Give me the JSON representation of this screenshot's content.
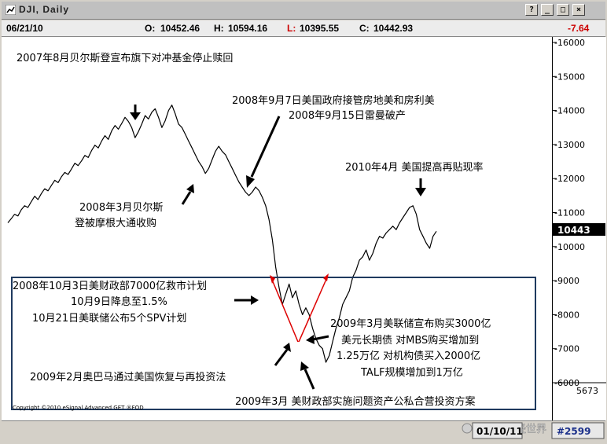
{
  "window": {
    "title": "DJI, Daily"
  },
  "infobar": {
    "date": "06/21/10",
    "open_label": "O:",
    "open": "10452.46",
    "high_label": "H:",
    "high": "10594.16",
    "low_label": "L:",
    "low": "10395.55",
    "close_label": "C:",
    "close": "10442.93",
    "change": "-7.64"
  },
  "colors": {
    "price_line": "#000000",
    "arrow": "#000000",
    "v_arrows": "#dd0000",
    "box": "#1f3a5f",
    "last_price_box": "#000000",
    "low_text": "#cc0000"
  },
  "last_price_label": "10443",
  "volume_label": "5673",
  "copyright": "Copyright ©2010 eSignal Advanced GET ®FOD",
  "footer": {
    "date": "01/10/11",
    "chart_no": "#2599"
  },
  "watermark": "付鹏的财经世界",
  "annotations": {
    "a1": "2007年8月贝尔斯登宣布旗下对冲基金停止赎回",
    "a2_line1": "2008年9月7日美国政府接管房地美和房利美",
    "a2_line2": "2008年9月15日雷曼破产",
    "a3_line1": "2008年3月贝尔斯",
    "a3_line2": "登被摩根大通收购",
    "a4": "2010年4月  美国提高再贴现率",
    "a5_line1": "2008年10月3日美财政部7000亿救市计划",
    "a5_line2": "10月9日降息至1.5%",
    "a5_line3": "10月21日美联储公布5个SPV计划",
    "a6_line1": "2009年3月美联储宣布购买3000亿",
    "a6_line2": "美元长期债  对MBS购买增加到",
    "a6_line3": "1.25万亿  对机构债买入2000亿",
    "a6_line4": "TALF规模增加到1万亿",
    "a7": "2009年2月奥巴马通过美国恢复与再投资法",
    "a8": "2009年3月  美财政部实施问题资产公私合营投资方案"
  },
  "chart_data": {
    "type": "line",
    "title": "DJI, Daily",
    "ylim": [
      5700,
      16000
    ],
    "y_ticks": [
      6000,
      7000,
      8000,
      9000,
      10000,
      11000,
      12000,
      13000,
      14000,
      15000,
      16000
    ],
    "y_tick_labels": [
      "-6000",
      "-7000",
      "-8000",
      "-9000",
      "-10000",
      "-11000",
      "-12000",
      "-13000",
      "-14000",
      "-15000",
      "-16000"
    ],
    "grid": false,
    "x_labels": [],
    "series": [
      {
        "values": [
          10700,
          10820,
          10950,
          10900,
          11080,
          11200,
          11150,
          11320,
          11480,
          11380,
          11560,
          11700,
          11640,
          11800,
          11950,
          11880,
          12050,
          12180,
          12120,
          12280,
          12450,
          12380,
          12520,
          12680,
          12620,
          12820,
          12980,
          12900,
          13100,
          13260,
          13150,
          13400,
          13560,
          13450,
          13620,
          13800,
          13680,
          13500,
          13200,
          13380,
          13600,
          13850,
          13750,
          13950,
          14050,
          13800,
          13500,
          13700,
          14000,
          14160,
          13900,
          13600,
          13500,
          13300,
          13100,
          12900,
          12700,
          12500,
          12350,
          12150,
          12300,
          12550,
          12800,
          12950,
          12800,
          12700,
          12500,
          12300,
          12100,
          11900,
          11750,
          11600,
          11500,
          11600,
          11750,
          11650,
          11450,
          11200,
          10800,
          10200,
          9400,
          8800,
          8300,
          8600,
          8900,
          8500,
          8700,
          8300,
          8000,
          8200,
          8000,
          7600,
          7300,
          7100,
          7000,
          6600,
          6800,
          7200,
          7600,
          7900,
          8300,
          8500,
          8700,
          9100,
          9300,
          9600,
          9700,
          9900,
          9600,
          9800,
          10100,
          10300,
          10250,
          10400,
          10500,
          10600,
          10500,
          10700,
          10850,
          11000,
          11150,
          11200,
          10950,
          10500,
          10300,
          10100,
          9950,
          10300,
          10450
        ]
      }
    ]
  }
}
